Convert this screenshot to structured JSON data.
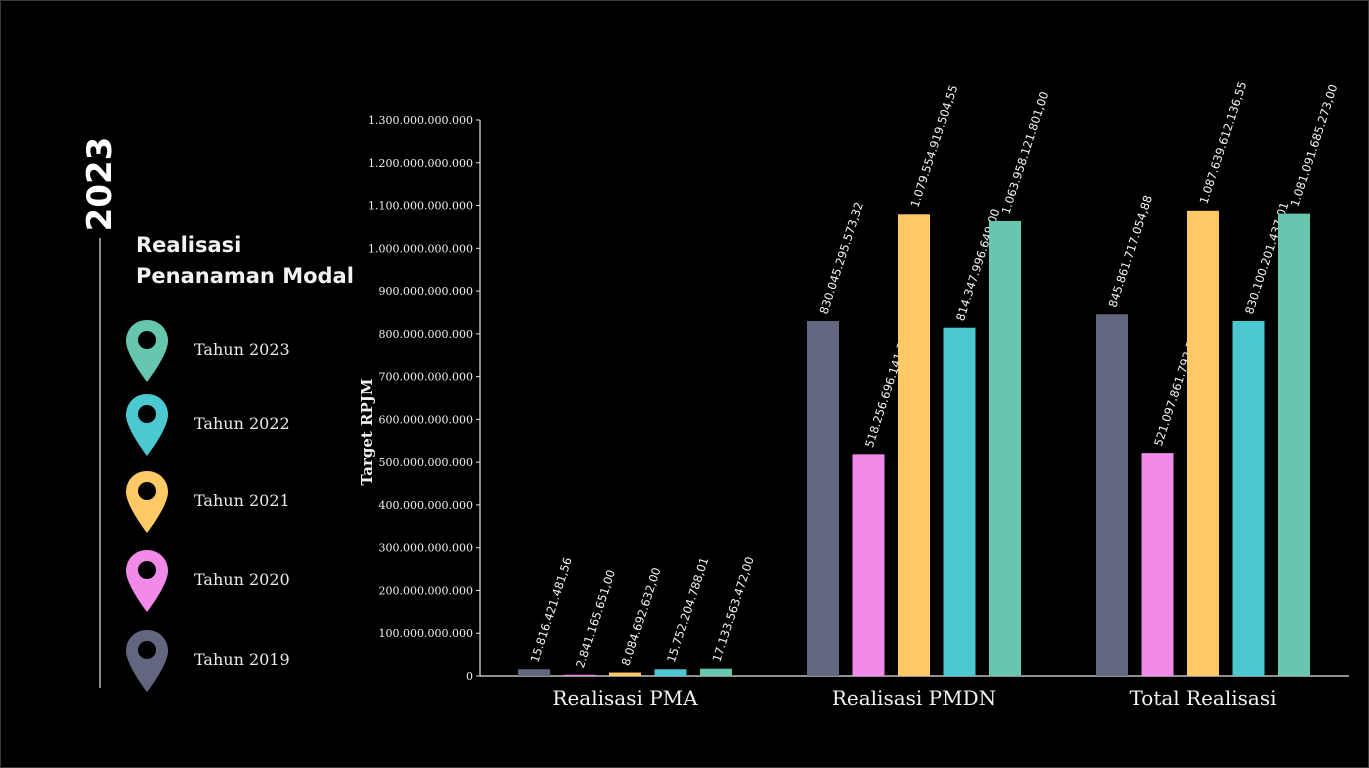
{
  "sidebar": {
    "year": "2023",
    "title_line1": "Realisasi",
    "title_line2": "Penanaman Modal"
  },
  "colors": {
    "2019": "#62677f",
    "2020": "#f28ae9",
    "2021": "#ffc966",
    "2022": "#4cc9d0",
    "2023": "#66c6ae"
  },
  "legend": [
    {
      "label": "Tahun 2023",
      "color": "#66c6ae",
      "icon": "map-pin-icon"
    },
    {
      "label": "Tahun 2022",
      "color": "#4cc9d0",
      "icon": "map-pin-icon"
    },
    {
      "label": "Tahun 2021",
      "color": "#ffc966",
      "icon": "map-pin-icon"
    },
    {
      "label": "Tahun 2020",
      "color": "#f28ae9",
      "icon": "map-pin-icon"
    },
    {
      "label": "Tahun 2019",
      "color": "#62677f",
      "icon": "map-pin-icon"
    }
  ],
  "chart_data": {
    "type": "bar",
    "categories": [
      "Realisasi PMA",
      "Realisasi PMDN",
      "Total Realisasi"
    ],
    "ylabel": "Target RPJM",
    "ylim": [
      0,
      1300000000000
    ],
    "yticks": [
      0,
      100000000000,
      200000000000,
      300000000000,
      400000000000,
      500000000000,
      600000000000,
      700000000000,
      800000000000,
      900000000000,
      1000000000000,
      1100000000000,
      1200000000000,
      1300000000000
    ],
    "ytick_labels": [
      "0",
      "100.000.000.000",
      "200.000.000.000",
      "300.000.000.000",
      "400.000.000.000",
      "500.000.000.000",
      "600.000.000.000",
      "700.000.000.000",
      "800.000.000.000",
      "900.000.000.000",
      "1.000.000.000.000",
      "1.100.000.000.000",
      "1.200.000.000.000",
      "1.300.000.000.000"
    ],
    "grid": false,
    "series": [
      {
        "name": "Tahun 2019",
        "color": "#62677f",
        "values": [
          15816421481.56,
          830045295573.32,
          845861717054.88
        ],
        "labels": [
          "15.816.421.481,56",
          "830.045.295.573,32",
          "845.861.717.054,88"
        ]
      },
      {
        "name": "Tahun 2020",
        "color": "#f28ae9",
        "values": [
          2841165651.0,
          518256696141.71,
          521097861792.71
        ],
        "labels": [
          "2.841.165.651,00",
          "518.256.696.141,71",
          "521.097.861.792,71"
        ]
      },
      {
        "name": "Tahun 2021",
        "color": "#ffc966",
        "values": [
          8084692632.0,
          1079554919504.55,
          1087639612136.55
        ],
        "labels": [
          "8.084.692.632,00",
          "1.079.554.919.504,55",
          "1.087.639.612.136,55"
        ]
      },
      {
        "name": "Tahun 2022",
        "color": "#4cc9d0",
        "values": [
          15752204788.01,
          814347996649.0,
          830100201437.01
        ],
        "labels": [
          "15.752.204.788,01",
          "814.347.996.649,00",
          "830.100.201.437,01"
        ]
      },
      {
        "name": "Tahun 2023",
        "color": "#66c6ae",
        "values": [
          17133563472.0,
          1063958121801.0,
          1081091685273.0
        ],
        "labels": [
          "17.133.563.472,00",
          "1.063.958.121.801,00",
          "1.081.091.685.273,00"
        ]
      }
    ]
  }
}
